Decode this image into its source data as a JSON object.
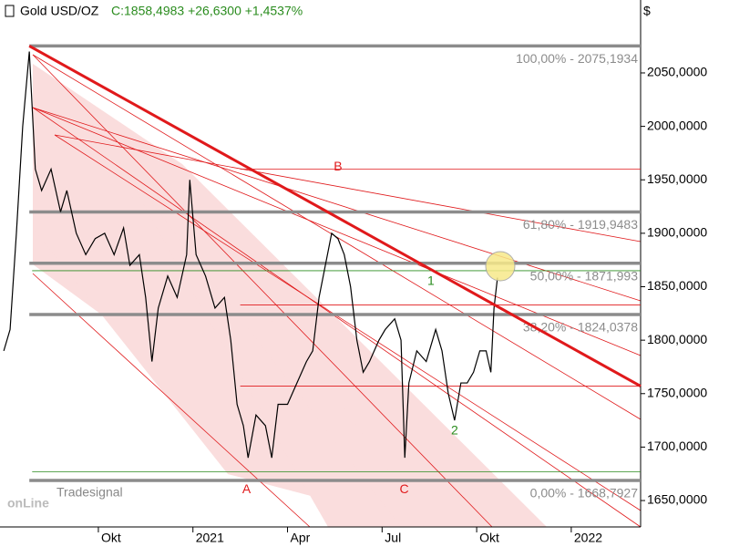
{
  "chart_data": {
    "type": "line",
    "title": "Gold USD/OZ",
    "subtitle": "C:1858,4983 +26,6300 +1,4537%",
    "currency": "$",
    "x": [
      0.0,
      0.2,
      0.4,
      0.6,
      0.81,
      1.0,
      1.2,
      1.5,
      1.8,
      2.0,
      2.3,
      2.6,
      2.9,
      3.2,
      3.5,
      3.8,
      4.0,
      4.3,
      4.5,
      4.7,
      4.9,
      5.2,
      5.5,
      5.8,
      5.9,
      6.1,
      6.4,
      6.7,
      7.0,
      7.2,
      7.4,
      7.6,
      7.75,
      8.0,
      8.3,
      8.5,
      8.7,
      9.0,
      9.3,
      9.6,
      9.8,
      10.0,
      10.2,
      10.4,
      10.6,
      10.8,
      11.0,
      11.2,
      11.4,
      11.6,
      11.9,
      12.1,
      12.4,
      12.6,
      12.72,
      12.85,
      13.1,
      13.4,
      13.7,
      13.9,
      14.1,
      14.3,
      14.5,
      14.7,
      14.9,
      15.1,
      15.3,
      15.45,
      15.55,
      15.66
    ],
    "series": [
      {
        "name": "Gold USD/OZ",
        "color": "#000000",
        "values": [
          1790,
          1810,
          1900,
          2000,
          2070,
          1960,
          1940,
          1960,
          1920,
          1940,
          1900,
          1880,
          1895,
          1900,
          1880,
          1905,
          1870,
          1880,
          1840,
          1780,
          1830,
          1860,
          1840,
          1880,
          1950,
          1880,
          1860,
          1830,
          1840,
          1800,
          1740,
          1720,
          1690,
          1730,
          1720,
          1690,
          1740,
          1740,
          1760,
          1780,
          1790,
          1840,
          1870,
          1900,
          1895,
          1880,
          1850,
          1800,
          1770,
          1780,
          1800,
          1810,
          1820,
          1800,
          1690,
          1760,
          1790,
          1780,
          1810,
          1790,
          1750,
          1725,
          1760,
          1760,
          1770,
          1790,
          1790,
          1770,
          1830,
          1858.4983
        ]
      }
    ],
    "xlim": [
      -0.12,
      20.2
    ],
    "xticks": [
      {
        "value": 3,
        "label": "Okt"
      },
      {
        "value": 6,
        "label": "2021"
      },
      {
        "value": 9,
        "label": "Apr"
      },
      {
        "value": 12,
        "label": "Jul"
      },
      {
        "value": 15,
        "label": "Okt"
      },
      {
        "value": 18,
        "label": "2022"
      }
    ],
    "ylim": [
      1625.3,
      2118.2
    ],
    "yticks": [
      {
        "value": 1650,
        "label": "1650,0000"
      },
      {
        "value": 1700,
        "label": "1700,0000"
      },
      {
        "value": 1750,
        "label": "1750,0000"
      },
      {
        "value": 1800,
        "label": "1800,0000"
      },
      {
        "value": 1850,
        "label": "1850,0000"
      },
      {
        "value": 1900,
        "label": "1900,0000"
      },
      {
        "value": 1950,
        "label": "1950,0000"
      },
      {
        "value": 2000,
        "label": "2000,0000"
      },
      {
        "value": 2050,
        "label": "2050,0000"
      }
    ],
    "fib_levels": [
      {
        "value": 2075.1934,
        "label": "100,00% - 2075,1934"
      },
      {
        "value": 1919.9483,
        "label": "61,80% - 1919,9483"
      },
      {
        "value": 1871.993,
        "label": "50,00% - 1871,993"
      },
      {
        "value": 1824.0378,
        "label": "38,20% - 1824,0378"
      },
      {
        "value": 1668.7927,
        "label": "0,00% - 1668,7927"
      }
    ],
    "fib_color": "#8c8c8c",
    "trendline": {
      "x": [
        0.81,
        20.2
      ],
      "y": [
        2075.1934,
        1757
      ],
      "color": "#e0191b"
    },
    "red_levels": [
      1960,
      1833,
      1757
    ],
    "green_levels": [
      1865,
      1677
    ],
    "markers": [
      {
        "text": "A",
        "x": 7.7,
        "y": 1660,
        "color": "#e0191b"
      },
      {
        "text": "B",
        "x": 10.6,
        "y": 1962,
        "color": "#e0191b"
      },
      {
        "text": "C",
        "x": 12.7,
        "y": 1660,
        "color": "#e0191b"
      },
      {
        "text": "1",
        "x": 13.55,
        "y": 1855,
        "color": "#2a8c1e"
      },
      {
        "text": "2",
        "x": 14.3,
        "y": 1715,
        "color": "#2a8c1e"
      }
    ],
    "logo": {
      "brand": "Tradesignal",
      "name": "onLine"
    }
  }
}
